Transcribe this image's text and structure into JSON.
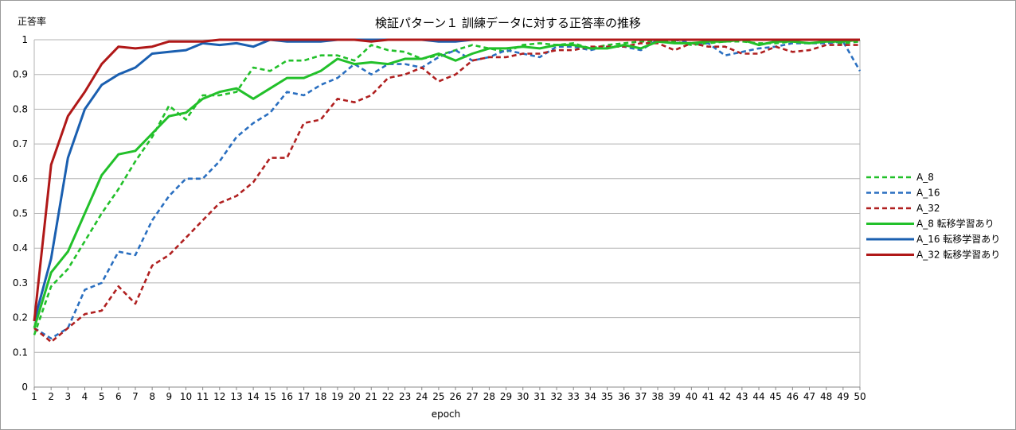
{
  "chart_data": {
    "type": "line",
    "title": "検証パターン１ 訓練データに対する正答率の推移",
    "xlabel": "epoch",
    "ylabel": "正答率",
    "ylim": [
      0,
      1
    ],
    "yticks": [
      "0",
      "0.1",
      "0.2",
      "0.3",
      "0.4",
      "0.5",
      "0.6",
      "0.7",
      "0.8",
      "0.9",
      "1"
    ],
    "grid": true,
    "legend_position": "right",
    "x": [
      1,
      2,
      3,
      4,
      5,
      6,
      7,
      8,
      9,
      10,
      11,
      12,
      13,
      14,
      15,
      16,
      17,
      18,
      19,
      20,
      21,
      22,
      23,
      24,
      25,
      26,
      27,
      28,
      29,
      30,
      31,
      32,
      33,
      34,
      35,
      36,
      37,
      38,
      39,
      40,
      41,
      42,
      43,
      44,
      45,
      46,
      47,
      48,
      49,
      50
    ],
    "series": [
      {
        "name": "A_8",
        "color": "#22c02a",
        "dashed": true,
        "values": [
          0.15,
          0.29,
          0.34,
          0.42,
          0.5,
          0.57,
          0.65,
          0.72,
          0.81,
          0.77,
          0.84,
          0.84,
          0.85,
          0.92,
          0.91,
          0.94,
          0.94,
          0.955,
          0.955,
          0.94,
          0.985,
          0.97,
          0.965,
          0.945,
          0.955,
          0.97,
          0.985,
          0.975,
          0.965,
          0.985,
          0.99,
          0.985,
          0.99,
          0.975,
          0.985,
          0.99,
          0.995,
          0.995,
          0.995,
          0.985,
          0.99,
          0.995,
          0.995,
          0.99,
          0.99,
          0.995,
          0.99,
          0.995,
          0.99,
          0.995
        ]
      },
      {
        "name": "A_16",
        "color": "#2a6fc0",
        "dashed": true,
        "values": [
          0.17,
          0.14,
          0.17,
          0.28,
          0.3,
          0.39,
          0.38,
          0.48,
          0.55,
          0.6,
          0.6,
          0.65,
          0.72,
          0.76,
          0.79,
          0.85,
          0.84,
          0.87,
          0.89,
          0.93,
          0.9,
          0.93,
          0.93,
          0.92,
          0.95,
          0.97,
          0.94,
          0.95,
          0.97,
          0.96,
          0.95,
          0.98,
          0.98,
          0.97,
          0.98,
          0.98,
          0.97,
          1.0,
          1.0,
          0.99,
          0.99,
          0.955,
          0.965,
          0.975,
          0.98,
          0.99,
          0.99,
          0.99,
          0.995,
          0.91
        ]
      },
      {
        "name": "A_32",
        "color": "#b02020",
        "dashed": true,
        "values": [
          0.17,
          0.13,
          0.17,
          0.21,
          0.22,
          0.29,
          0.24,
          0.35,
          0.38,
          0.43,
          0.48,
          0.53,
          0.55,
          0.59,
          0.66,
          0.66,
          0.76,
          0.77,
          0.83,
          0.82,
          0.84,
          0.89,
          0.9,
          0.92,
          0.88,
          0.9,
          0.94,
          0.95,
          0.95,
          0.96,
          0.96,
          0.97,
          0.97,
          0.98,
          0.98,
          0.98,
          0.99,
          0.99,
          0.97,
          0.99,
          0.98,
          0.98,
          0.96,
          0.96,
          0.98,
          0.965,
          0.97,
          0.985,
          0.985,
          0.985
        ]
      },
      {
        "name": "A_8 転移学習あり",
        "color": "#22c02a",
        "dashed": false,
        "values": [
          0.17,
          0.33,
          0.39,
          0.5,
          0.61,
          0.67,
          0.68,
          0.73,
          0.78,
          0.79,
          0.83,
          0.85,
          0.86,
          0.83,
          0.86,
          0.89,
          0.89,
          0.91,
          0.945,
          0.93,
          0.935,
          0.93,
          0.945,
          0.945,
          0.96,
          0.94,
          0.96,
          0.975,
          0.975,
          0.98,
          0.975,
          0.985,
          0.985,
          0.975,
          0.975,
          0.985,
          0.975,
          0.995,
          0.99,
          0.99,
          0.995,
          0.995,
          1.0,
          0.985,
          0.995,
          0.995,
          0.99,
          0.995,
          0.995,
          1.0
        ]
      },
      {
        "name": "A_16 転移学習あり",
        "color": "#1a5fb0",
        "dashed": false,
        "values": [
          0.19,
          0.37,
          0.66,
          0.8,
          0.87,
          0.9,
          0.92,
          0.96,
          0.965,
          0.97,
          0.99,
          0.985,
          0.99,
          0.98,
          1.0,
          0.995,
          0.995,
          0.995,
          1.0,
          1.0,
          1.0,
          1.0,
          1.0,
          1.0,
          0.995,
          0.995,
          1.0,
          1.0,
          1.0,
          1.0,
          1.0,
          1.0,
          1.0,
          1.0,
          1.0,
          1.0,
          1.0,
          1.0,
          1.0,
          1.0,
          1.0,
          1.0,
          1.0,
          1.0,
          1.0,
          1.0,
          1.0,
          1.0,
          1.0,
          1.0
        ]
      },
      {
        "name": "A_32 転移学習あり",
        "color": "#b01818",
        "dashed": false,
        "values": [
          0.19,
          0.64,
          0.78,
          0.85,
          0.93,
          0.98,
          0.975,
          0.98,
          0.995,
          0.995,
          0.995,
          1.0,
          1.0,
          1.0,
          1.0,
          1.0,
          1.0,
          1.0,
          1.0,
          1.0,
          0.995,
          1.0,
          1.0,
          1.0,
          1.0,
          1.0,
          1.0,
          1.0,
          1.0,
          1.0,
          1.0,
          1.0,
          1.0,
          1.0,
          1.0,
          1.0,
          1.0,
          1.0,
          1.0,
          1.0,
          1.0,
          1.0,
          1.0,
          1.0,
          1.0,
          1.0,
          1.0,
          1.0,
          1.0,
          1.0
        ]
      }
    ]
  }
}
